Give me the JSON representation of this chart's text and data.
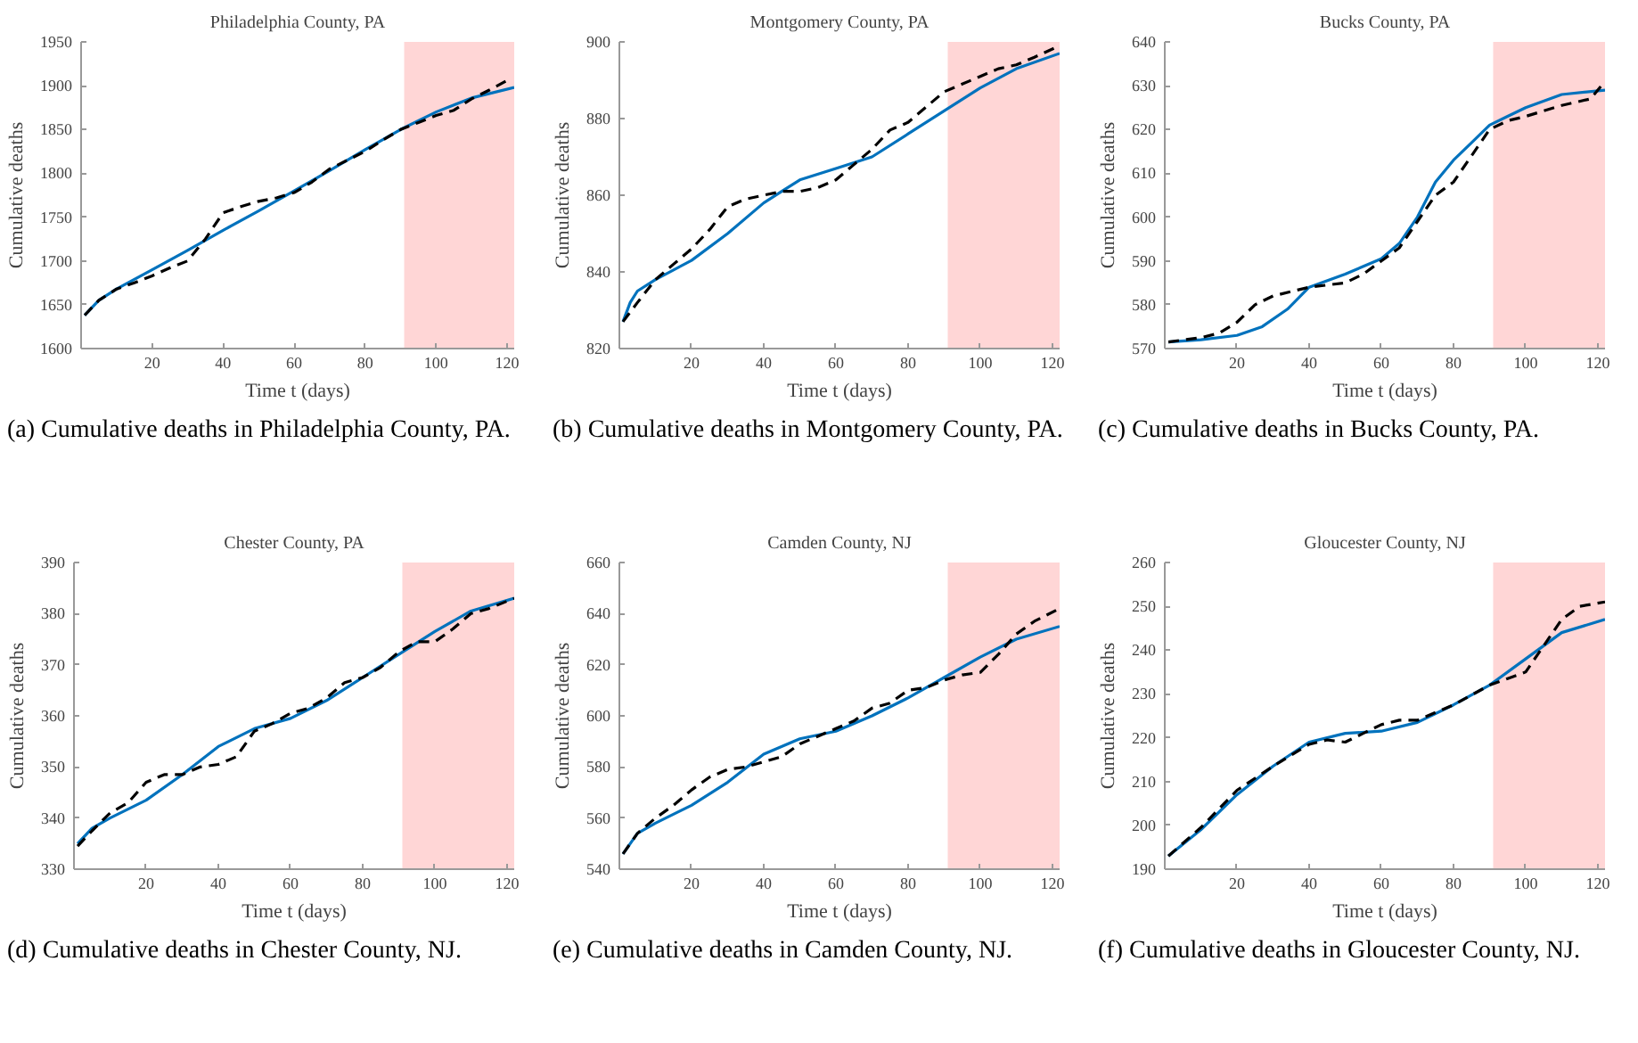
{
  "chart_data": [
    {
      "type": "line",
      "title": "Philadelphia County, PA",
      "xlabel": "Time t (days)",
      "ylabel": "Cumulative deaths",
      "xlim": [
        0,
        122
      ],
      "xticks": [
        20,
        40,
        60,
        80,
        100,
        120
      ],
      "ylim": [
        1600,
        1950
      ],
      "yticks": [
        1600,
        1650,
        1700,
        1750,
        1800,
        1850,
        1900,
        1950
      ],
      "grid": false,
      "annotations": [
        "(a) Cumulative deaths in Philadelphia County, PA."
      ],
      "bands": [
        {
          "axis": "x",
          "from": 91,
          "to": 122,
          "color": "#ffd6d6"
        }
      ],
      "series": [
        {
          "color": "#0072bd",
          "line_style": "solid",
          "x": [
            1,
            5,
            10,
            20,
            30,
            40,
            50,
            60,
            70,
            80,
            90,
            100,
            110,
            122
          ],
          "values": [
            1638,
            1655,
            1668,
            1690,
            1712,
            1735,
            1757,
            1780,
            1803,
            1827,
            1850,
            1870,
            1886,
            1898
          ]
        },
        {
          "color": "#000000",
          "line_style": "dashed",
          "x": [
            1,
            5,
            10,
            15,
            20,
            25,
            30,
            35,
            40,
            45,
            50,
            55,
            60,
            65,
            70,
            75,
            80,
            85,
            90,
            95,
            100,
            105,
            110,
            115,
            120
          ],
          "values": [
            1638,
            1655,
            1668,
            1675,
            1683,
            1692,
            1700,
            1725,
            1755,
            1762,
            1768,
            1772,
            1778,
            1790,
            1805,
            1815,
            1825,
            1838,
            1850,
            1858,
            1866,
            1872,
            1885,
            1895,
            1906
          ]
        }
      ]
    },
    {
      "type": "line",
      "title": "Montgomery County, PA",
      "xlabel": "Time t (days)",
      "ylabel": "Cumulative deaths",
      "xlim": [
        0,
        122
      ],
      "xticks": [
        20,
        40,
        60,
        80,
        100,
        120
      ],
      "ylim": [
        820,
        900
      ],
      "yticks": [
        820,
        840,
        860,
        880,
        900
      ],
      "grid": false,
      "annotations": [
        "(b) Cumulative deaths in Montgomery County, PA."
      ],
      "bands": [
        {
          "axis": "x",
          "from": 91,
          "to": 122,
          "color": "#ffd6d6"
        }
      ],
      "series": [
        {
          "color": "#0072bd",
          "line_style": "solid",
          "x": [
            1,
            3,
            5,
            10,
            20,
            30,
            40,
            45,
            50,
            60,
            70,
            80,
            90,
            100,
            110,
            122
          ],
          "values": [
            827,
            832,
            835,
            838,
            843,
            850,
            858,
            861,
            864,
            867,
            870,
            876,
            882,
            888,
            893,
            897
          ]
        },
        {
          "color": "#000000",
          "line_style": "dashed",
          "x": [
            1,
            5,
            10,
            15,
            20,
            25,
            30,
            35,
            40,
            45,
            50,
            55,
            60,
            65,
            70,
            75,
            80,
            85,
            90,
            95,
            100,
            105,
            110,
            115,
            122
          ],
          "values": [
            827,
            832,
            838,
            842,
            846,
            851,
            857,
            859,
            860,
            861,
            861,
            862,
            864,
            868,
            872,
            877,
            879,
            883,
            887,
            889,
            891,
            893,
            894,
            896,
            899
          ]
        }
      ]
    },
    {
      "type": "line",
      "title": "Bucks County, PA",
      "xlabel": "Time t (days)",
      "ylabel": "Cumulative deaths",
      "xlim": [
        0,
        122
      ],
      "xticks": [
        20,
        40,
        60,
        80,
        100,
        120
      ],
      "ylim": [
        570,
        640
      ],
      "yticks": [
        570,
        580,
        590,
        600,
        610,
        620,
        630,
        640
      ],
      "grid": false,
      "annotations": [
        "(c) Cumulative deaths in Bucks County, PA."
      ],
      "bands": [
        {
          "axis": "x",
          "from": 91,
          "to": 122,
          "color": "#ffd6d6"
        }
      ],
      "series": [
        {
          "color": "#0072bd",
          "line_style": "solid",
          "x": [
            1,
            10,
            20,
            27,
            34,
            40,
            50,
            60,
            65,
            70,
            75,
            80,
            85,
            90,
            95,
            100,
            110,
            122
          ],
          "values": [
            571.5,
            572,
            573,
            575,
            579,
            584,
            587,
            590.5,
            594,
            600,
            608,
            613,
            617,
            621,
            623,
            625,
            628,
            629
          ]
        },
        {
          "color": "#000000",
          "line_style": "dashed",
          "x": [
            1,
            10,
            15,
            20,
            25,
            30,
            35,
            40,
            50,
            55,
            60,
            65,
            70,
            75,
            80,
            85,
            90,
            95,
            100,
            110,
            118,
            122
          ],
          "values": [
            571.5,
            572.5,
            573.5,
            576,
            580,
            582,
            583,
            584,
            585,
            587,
            590,
            593,
            599,
            605,
            608,
            614,
            620,
            622,
            623,
            625.5,
            627,
            631
          ]
        }
      ]
    },
    {
      "type": "line",
      "title": "Chester County, PA",
      "xlabel": "Time t (days)",
      "ylabel": "Cumulative deaths",
      "xlim": [
        0,
        122
      ],
      "xticks": [
        20,
        40,
        60,
        80,
        100,
        120
      ],
      "ylim": [
        330,
        390
      ],
      "yticks": [
        330,
        340,
        350,
        360,
        370,
        380,
        390
      ],
      "grid": false,
      "annotations": [
        "(d) Cumulative deaths in Chester County, NJ."
      ],
      "bands": [
        {
          "axis": "x",
          "from": 91,
          "to": 122,
          "color": "#ffd6d6"
        }
      ],
      "series": [
        {
          "color": "#0072bd",
          "line_style": "solid",
          "x": [
            1,
            5,
            10,
            20,
            30,
            40,
            50,
            60,
            70,
            80,
            90,
            100,
            110,
            122
          ],
          "values": [
            335,
            338,
            340,
            343.5,
            348.5,
            354,
            357.5,
            359.5,
            363,
            367.5,
            372,
            376.5,
            380.5,
            383
          ]
        },
        {
          "color": "#000000",
          "line_style": "dashed",
          "x": [
            1,
            5,
            10,
            15,
            20,
            25,
            30,
            35,
            40,
            45,
            50,
            55,
            60,
            65,
            70,
            75,
            80,
            85,
            90,
            95,
            100,
            105,
            110,
            115,
            122
          ],
          "values": [
            334.5,
            337.5,
            341,
            343,
            347,
            348.5,
            348.5,
            350,
            350.5,
            352,
            357,
            358.5,
            360.5,
            361.5,
            363.5,
            366.5,
            367.5,
            369.5,
            372.5,
            374.5,
            374.5,
            377,
            380,
            381,
            383
          ]
        }
      ]
    },
    {
      "type": "line",
      "title": "Camden County, NJ",
      "xlabel": "Time t (days)",
      "ylabel": "Cumulative deaths",
      "xlim": [
        0,
        122
      ],
      "xticks": [
        20,
        40,
        60,
        80,
        100,
        120
      ],
      "ylim": [
        540,
        660
      ],
      "yticks": [
        540,
        560,
        580,
        600,
        620,
        640,
        660
      ],
      "grid": false,
      "annotations": [
        "(e) Cumulative deaths in Camden County, NJ."
      ],
      "bands": [
        {
          "axis": "x",
          "from": 91,
          "to": 122,
          "color": "#ffd6d6"
        }
      ],
      "series": [
        {
          "color": "#0072bd",
          "line_style": "solid",
          "x": [
            1,
            5,
            10,
            20,
            30,
            40,
            50,
            60,
            70,
            80,
            90,
            100,
            110,
            122
          ],
          "values": [
            546,
            554,
            558,
            565,
            574,
            585,
            591,
            594,
            600,
            607,
            615,
            623,
            630,
            635
          ]
        },
        {
          "color": "#000000",
          "line_style": "dashed",
          "x": [
            1,
            5,
            10,
            15,
            20,
            25,
            30,
            35,
            40,
            45,
            50,
            55,
            60,
            65,
            70,
            75,
            80,
            85,
            90,
            95,
            100,
            105,
            110,
            115,
            122
          ],
          "values": [
            546,
            554,
            560,
            565,
            571,
            576,
            579,
            580,
            582,
            584,
            589,
            592,
            595,
            598,
            603,
            605,
            610,
            611,
            614,
            616,
            617,
            624,
            632,
            637,
            642
          ]
        }
      ]
    },
    {
      "type": "line",
      "title": "Gloucester County, NJ",
      "xlabel": "Time t (days)",
      "ylabel": "Cumulative deaths",
      "xlim": [
        0,
        122
      ],
      "xticks": [
        20,
        40,
        60,
        80,
        100,
        120
      ],
      "ylim": [
        190,
        260
      ],
      "yticks": [
        190,
        200,
        210,
        220,
        230,
        240,
        250,
        260
      ],
      "grid": false,
      "annotations": [
        "(f) Cumulative deaths in Gloucester County, NJ."
      ],
      "bands": [
        {
          "axis": "x",
          "from": 91,
          "to": 122,
          "color": "#ffd6d6"
        }
      ],
      "series": [
        {
          "color": "#0072bd",
          "line_style": "solid",
          "x": [
            1,
            10,
            20,
            30,
            40,
            50,
            60,
            70,
            80,
            90,
            100,
            110,
            122
          ],
          "values": [
            193,
            199,
            207,
            213.5,
            219,
            221,
            221.5,
            223.5,
            227.5,
            232,
            238,
            244,
            247
          ]
        },
        {
          "color": "#000000",
          "line_style": "dashed",
          "x": [
            1,
            10,
            20,
            30,
            40,
            45,
            50,
            55,
            60,
            65,
            70,
            80,
            90,
            95,
            100,
            105,
            110,
            115,
            122
          ],
          "values": [
            193,
            199.5,
            208,
            213.5,
            218.5,
            219.5,
            219,
            221,
            223,
            224,
            224,
            227.5,
            232,
            233.5,
            235,
            241,
            247,
            250,
            251
          ]
        }
      ]
    }
  ]
}
